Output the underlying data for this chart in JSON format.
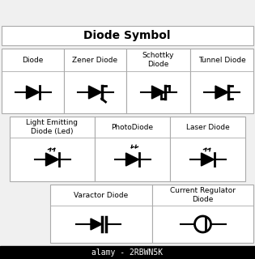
{
  "title": "Diode Symbol",
  "bg_color": "#f0f0f0",
  "cell_bg": "#ffffff",
  "border_color": "#aaaaaa",
  "text_color": "#000000",
  "title_fontsize": 10,
  "label_fontsize": 6.5,
  "watermark": "alamy - 2RBWN5K",
  "row1_labels": [
    "Diode",
    "Zener Diode",
    "Schottky\nDiode",
    "Tunnel Diode"
  ],
  "row2_labels": [
    "Light Emitting\nDiode (Led)",
    "PhotoDiode",
    "Laser Diode"
  ],
  "row3_labels": [
    "Varactor Diode",
    "Current Regulator\nDiode"
  ]
}
